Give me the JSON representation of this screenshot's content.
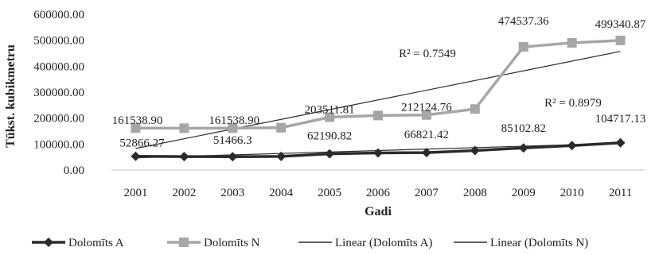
{
  "chart_data": {
    "type": "line",
    "xlabel": "Gadi",
    "ylabel": "Tūkst. kubikmetru",
    "ylim": [
      0,
      600000
    ],
    "y_ticks": [
      "0.00",
      "100000.00",
      "200000.00",
      "300000.00",
      "400000.00",
      "500000.00",
      "600000.00"
    ],
    "categories": [
      "2001",
      "2002",
      "2003",
      "2004",
      "2005",
      "2006",
      "2007",
      "2008",
      "2009",
      "2010",
      "2011"
    ],
    "grid": false,
    "legend_position": "bottom",
    "series": [
      {
        "name": "Dolomīts A",
        "color": "#2b2b2b",
        "marker": "diamond",
        "values": [
          52866.27,
          51500,
          51466.3,
          52500,
          62190.82,
          66000,
          66821.42,
          75000,
          85102.82,
          94000,
          104717.13
        ],
        "data_labels": [
          {
            "index": 0,
            "text": "52866.27"
          },
          {
            "index": 2,
            "text": "51466.3"
          },
          {
            "index": 4,
            "text": "62190.82"
          },
          {
            "index": 6,
            "text": "66821.42"
          },
          {
            "index": 8,
            "text": "85102.82"
          },
          {
            "index": 10,
            "text": "104717.13"
          }
        ]
      },
      {
        "name": "Dolomīts N",
        "color": "#a6a6a6",
        "marker": "square",
        "values": [
          161538.9,
          161000,
          161538.9,
          163000,
          203511.81,
          210000,
          212124.76,
          235000,
          474537.36,
          490000,
          499340.87
        ],
        "data_labels": [
          {
            "index": 0,
            "text": "161538.90"
          },
          {
            "index": 2,
            "text": "161538.90"
          },
          {
            "index": 4,
            "text": "203511.81"
          },
          {
            "index": 6,
            "text": "212124.76"
          },
          {
            "index": 8,
            "text": "474537.36"
          },
          {
            "index": 10,
            "text": "499340.87"
          }
        ]
      }
    ],
    "trendlines": [
      {
        "name": "Linear (Dolomīts A)",
        "color": "#2b2b2b",
        "start": 47000,
        "end": 103000,
        "r2": "R² = 0.8979"
      },
      {
        "name": "Linear (Dolomīts N)",
        "color": "#2b2b2b",
        "start": 83000,
        "end": 457000,
        "r2": "R² = 0.7549"
      }
    ]
  }
}
